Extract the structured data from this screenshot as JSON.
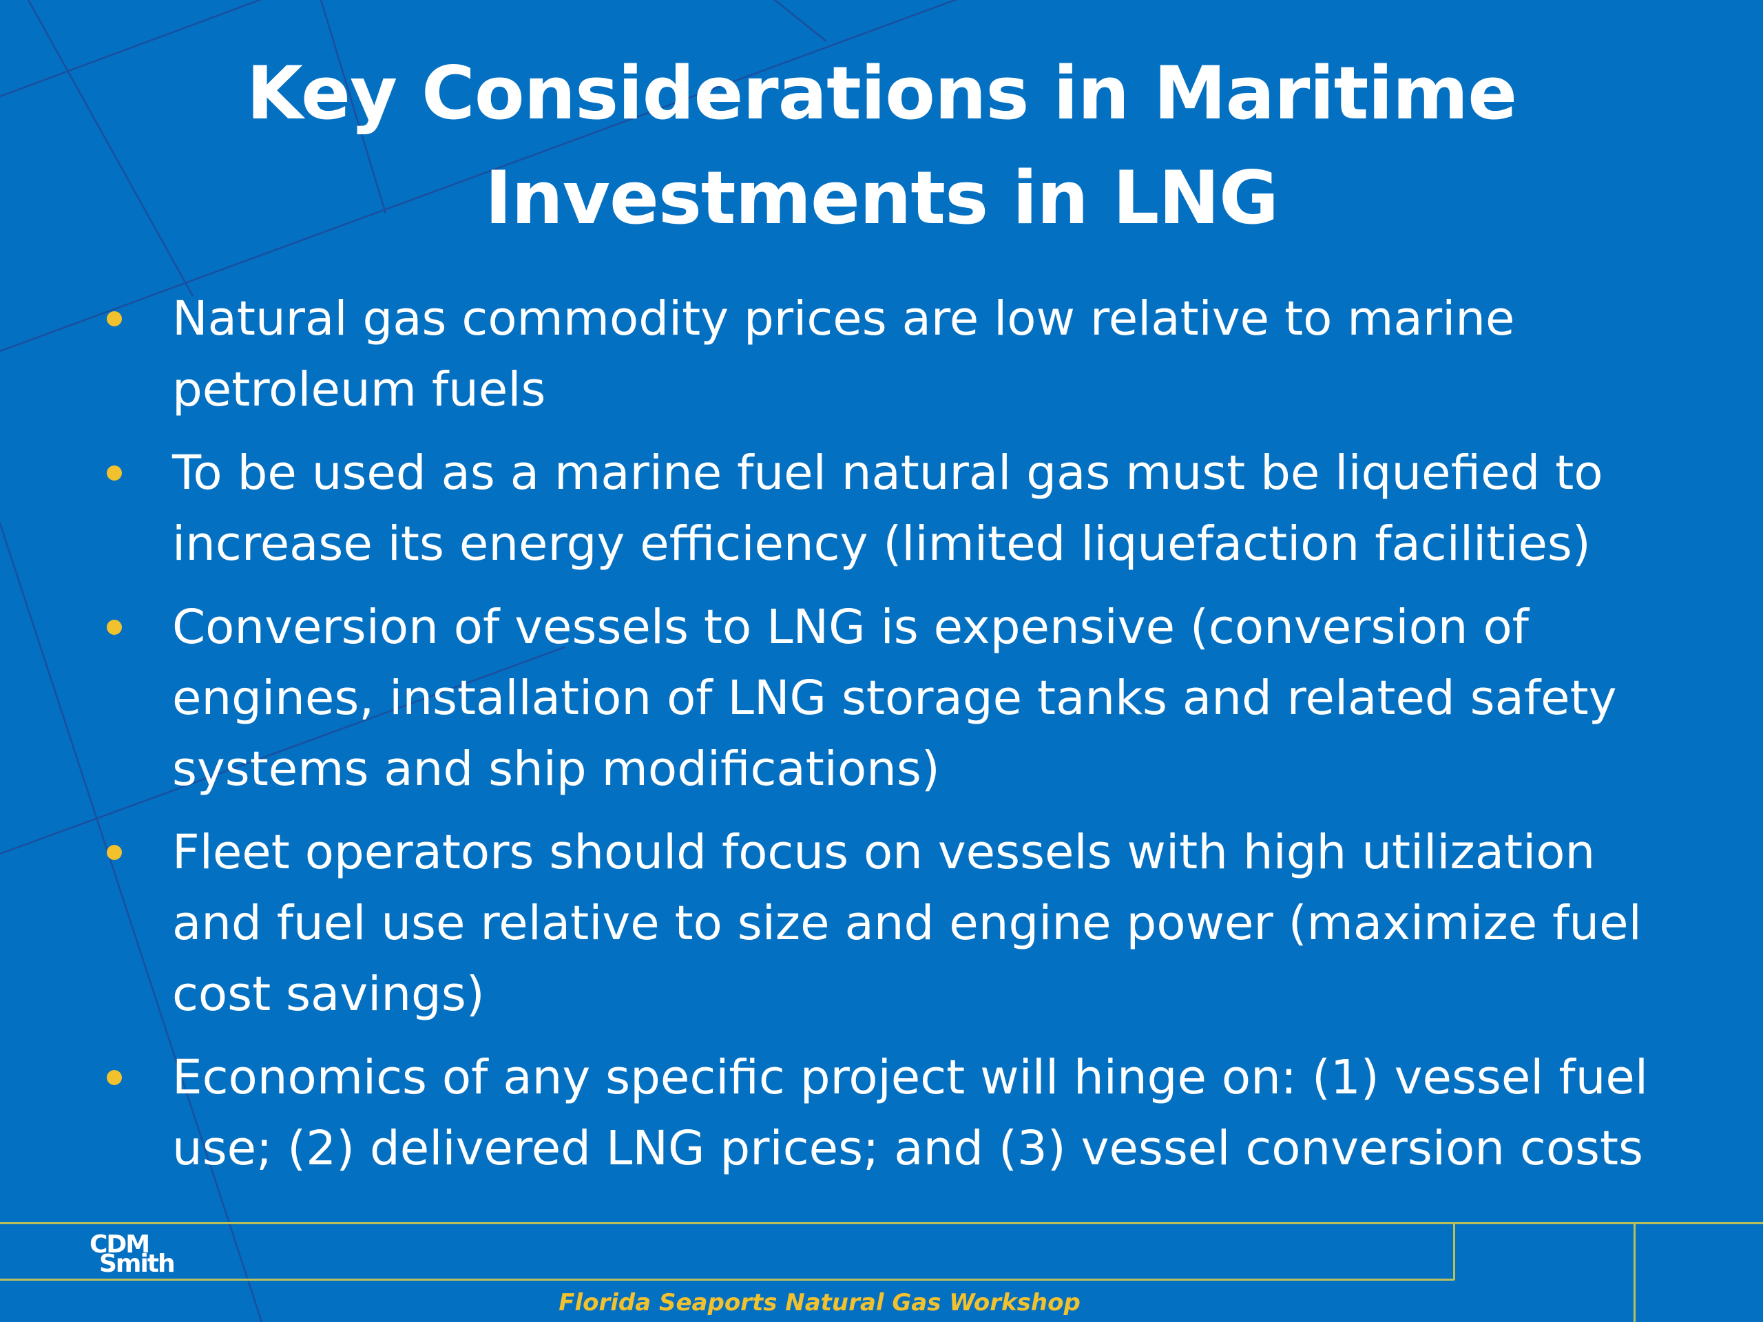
{
  "slide": {
    "title_line1": "Key Considerations in Maritime",
    "title_line2": "Investments in LNG",
    "bullets": [
      "Natural gas commodity prices are low relative to marine petroleum fuels",
      "To be used as a marine fuel natural gas must be liquefied to increase its energy efficiency (limited liquefaction facilities)",
      "Conversion of vessels to LNG is expensive (conversion of engines, installation of LNG storage tanks and related safety systems and ship modifications)",
      "Fleet operators should focus on vessels with high utilization and fuel use relative to size and engine power (maximize fuel cost savings)",
      "Economics of any specific project will hinge on: (1) vessel fuel use; (2) delivered LNG prices; and (3) vessel conversion costs"
    ]
  },
  "footer": {
    "logo_line1": "CDM",
    "logo_line2": "Smith",
    "event_name": "Florida Seaports Natural Gas Workshop"
  },
  "colors": {
    "background": "#0470C2",
    "text": "#FFFFFF",
    "bullet_accent": "#F2C12E",
    "footer_rule": "#B9C05A",
    "grid_line": "#1A3F8C"
  }
}
